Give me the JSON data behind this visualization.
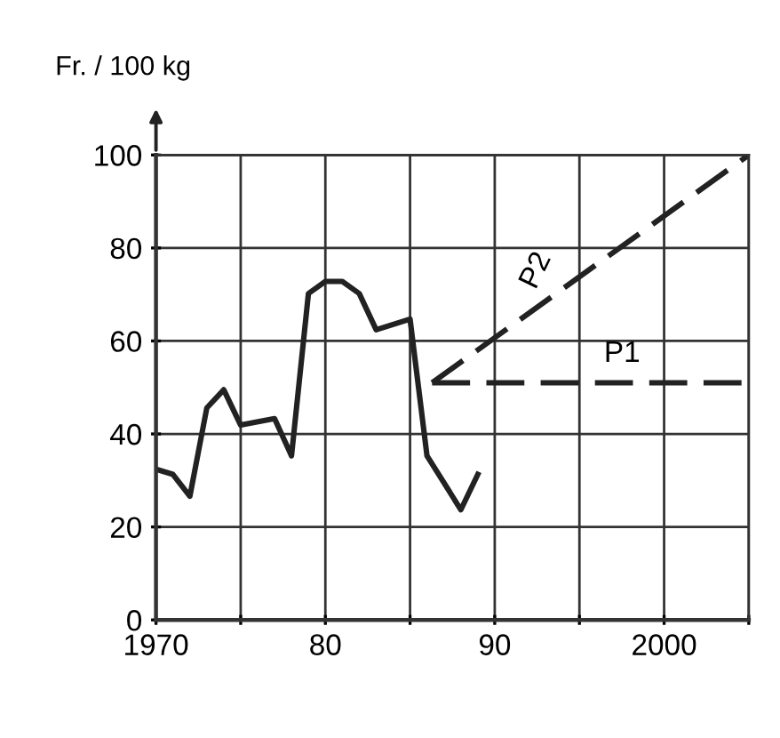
{
  "chart_data": {
    "type": "line",
    "ylabel": "Fr. / 100 kg",
    "series": [
      {
        "color": "#222222",
        "line_style": "solid",
        "x": [
          1970,
          1971,
          1972,
          1973,
          1974,
          1975,
          1977,
          1978,
          1979,
          1980,
          1981,
          1982,
          1983,
          1985,
          1986,
          1987,
          1988,
          1989
        ],
        "values": [
          32.4,
          31.3,
          26.6,
          45.6,
          49.5,
          41.9,
          43.3,
          35.3,
          70.2,
          72.8,
          72.8,
          70.2,
          62.4,
          64.7,
          35.3,
          29.5,
          23.7,
          31.3
        ]
      },
      {
        "name": "P2",
        "color": "#222222",
        "line_style": "dashed",
        "x": [
          1986.3,
          2005
        ],
        "values": [
          51,
          100
        ]
      },
      {
        "name": "P1",
        "color": "#222222",
        "line_style": "dashed",
        "x": [
          1986.3,
          2005
        ],
        "values": [
          51,
          51
        ]
      }
    ],
    "xlim": [
      1970,
      2005
    ],
    "ylim": [
      0,
      100
    ],
    "xticks": [
      1970,
      {
        "value": 1975,
        "label": null
      },
      {
        "value": 1980,
        "label": "80"
      },
      {
        "value": 1985,
        "label": null
      },
      {
        "value": 1990,
        "label": "90"
      },
      {
        "value": 1995,
        "label": null
      },
      2000,
      {
        "value": 2005,
        "label": null
      }
    ],
    "yticks": [
      0,
      20,
      40,
      60,
      80,
      100
    ],
    "grid": true,
    "legend": false,
    "marker": "none"
  }
}
